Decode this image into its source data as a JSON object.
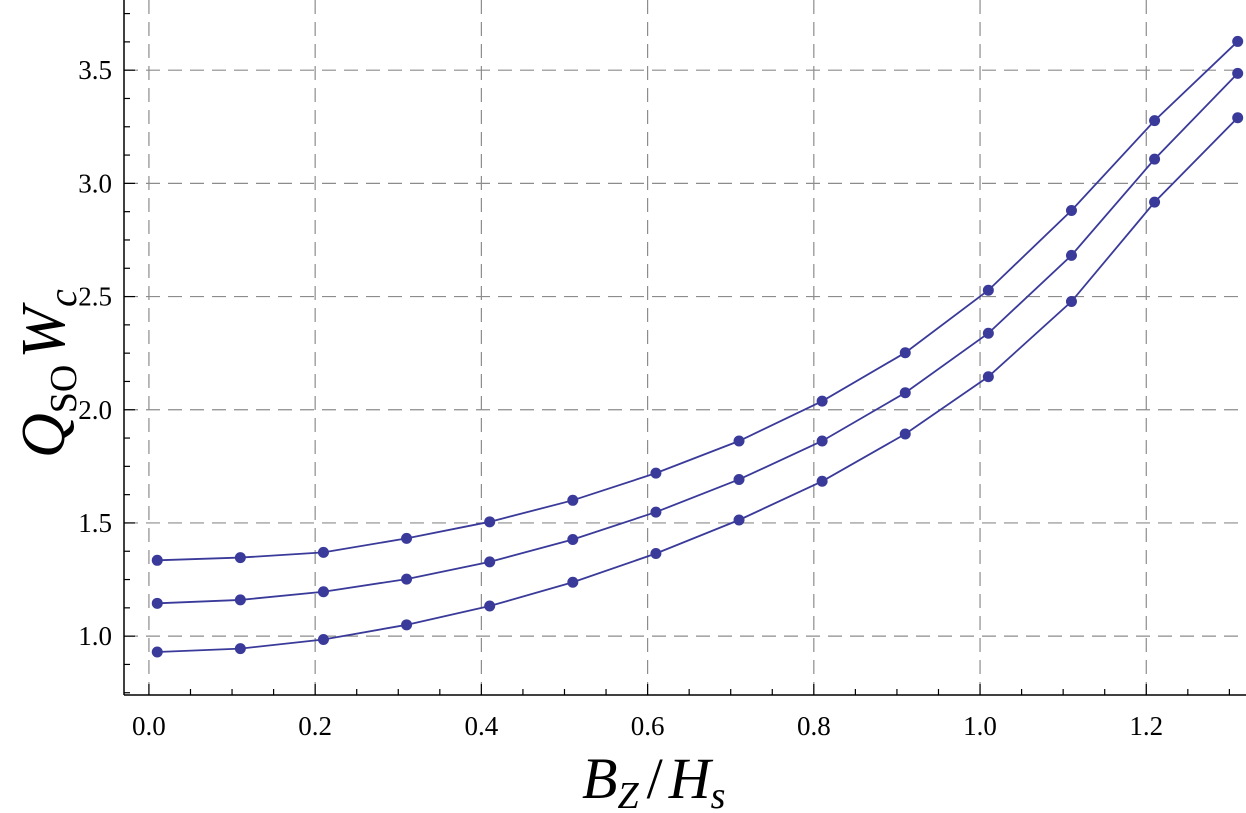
{
  "chart_data": {
    "type": "line",
    "xlabel": {
      "main": "B",
      "sub1": "Z",
      "sep": "/",
      "main2": "H",
      "sub2": "s"
    },
    "ylabel": {
      "main": "Q",
      "sub": "SO",
      "main2": "W",
      "sub2": "c"
    },
    "xlim": [
      -0.03,
      1.32
    ],
    "ylim": [
      0.74,
      3.81
    ],
    "x_ticks": [
      "0.0",
      "0.2",
      "0.4",
      "0.6",
      "0.8",
      "1.0",
      "1.2"
    ],
    "y_ticks": [
      "1.0",
      "1.5",
      "2.0",
      "2.5",
      "3.0",
      "3.5"
    ],
    "grid": true,
    "colors": {
      "series": "#3a3a9a",
      "grid": "#8c8c8c",
      "axis": "#000000"
    },
    "x": [
      0.01,
      0.11,
      0.21,
      0.31,
      0.41,
      0.51,
      0.61,
      0.71,
      0.81,
      0.91,
      1.01,
      1.11,
      1.21,
      1.31
    ],
    "series": [
      {
        "values": [
          1.335,
          1.347,
          1.37,
          1.432,
          1.505,
          1.6,
          1.72,
          1.862,
          2.038,
          2.252,
          2.528,
          2.88,
          3.277,
          3.627
        ]
      },
      {
        "values": [
          1.145,
          1.16,
          1.196,
          1.252,
          1.328,
          1.427,
          1.548,
          1.692,
          1.862,
          2.075,
          2.338,
          2.682,
          3.107,
          3.486
        ]
      },
      {
        "values": [
          0.93,
          0.945,
          0.985,
          1.05,
          1.133,
          1.238,
          1.365,
          1.513,
          1.684,
          1.893,
          2.146,
          2.478,
          2.917,
          3.29
        ]
      }
    ]
  }
}
